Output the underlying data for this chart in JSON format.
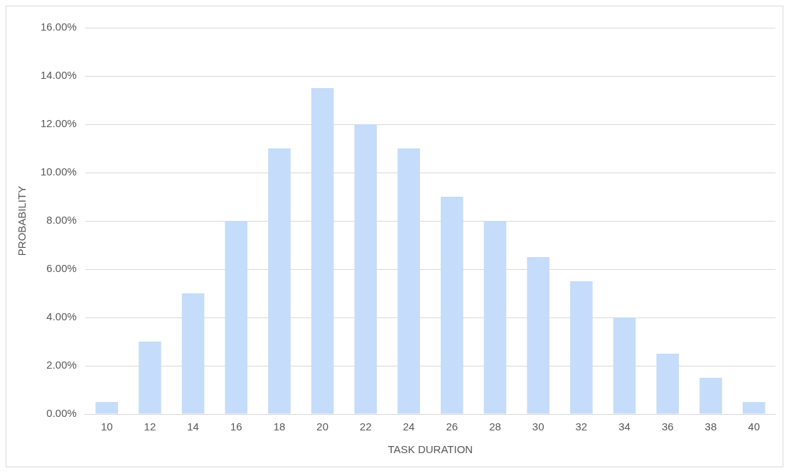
{
  "chart_data": {
    "type": "bar",
    "xlabel": "TASK DURATION",
    "ylabel": "PROBABILITY",
    "categories": [
      "10",
      "12",
      "14",
      "16",
      "18",
      "20",
      "22",
      "24",
      "26",
      "28",
      "30",
      "32",
      "34",
      "36",
      "38",
      "40"
    ],
    "values": [
      0.5,
      3,
      5,
      8,
      11,
      13.5,
      12,
      11,
      9,
      8,
      6.5,
      5.5,
      4,
      2.5,
      1.5,
      0.5
    ],
    "color": "#c5dcfa",
    "ylim": [
      0,
      16
    ],
    "yticks": [
      {
        "value": 0,
        "label": "0.00%"
      },
      {
        "value": 2,
        "label": "2.00%"
      },
      {
        "value": 4,
        "label": "4.00%"
      },
      {
        "value": 6,
        "label": "6.00%"
      },
      {
        "value": 8,
        "label": "8.00%"
      },
      {
        "value": 10,
        "label": "10.00%"
      },
      {
        "value": 12,
        "label": "12.00%"
      },
      {
        "value": 14,
        "label": "14.00%"
      },
      {
        "value": 16,
        "label": "16.00%"
      }
    ],
    "grid": "y",
    "legend": false
  }
}
